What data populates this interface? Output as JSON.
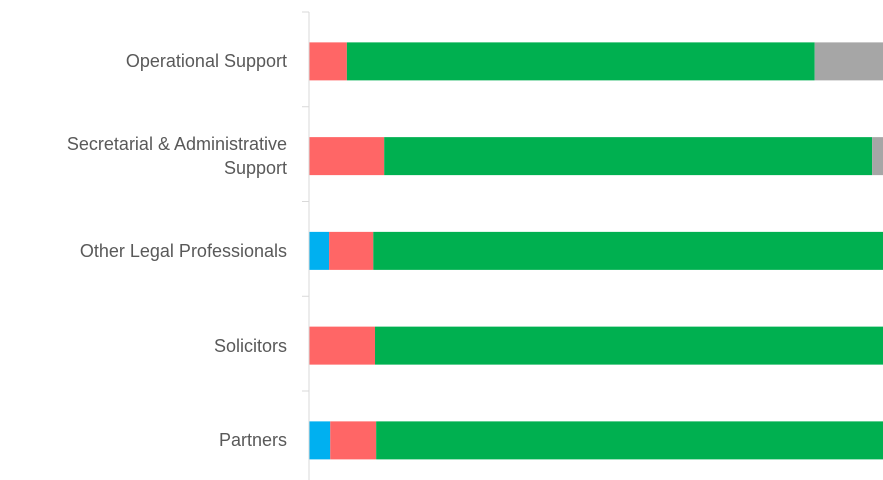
{
  "chart_data": {
    "type": "stacked_barh",
    "categories": [
      "Operational Support",
      "Secretarial & Administrative Support",
      "Other Legal Professionals",
      "Solicitors",
      "Partners"
    ],
    "series": [
      {
        "color": "#00b0f0",
        "values": [
          0,
          0,
          3.5,
          0,
          3.7
        ]
      },
      {
        "color": "#ff6666",
        "values": [
          6.6,
          13.1,
          7.7,
          11.5,
          8.0
        ]
      },
      {
        "color": "#00b050",
        "values": [
          81.5,
          85.0,
          88.8,
          88.5,
          88.3
        ]
      },
      {
        "color": "#a6a6a6",
        "values": [
          11.9,
          1.9,
          0,
          0,
          0
        ]
      }
    ],
    "xlim": [
      0,
      100
    ]
  }
}
